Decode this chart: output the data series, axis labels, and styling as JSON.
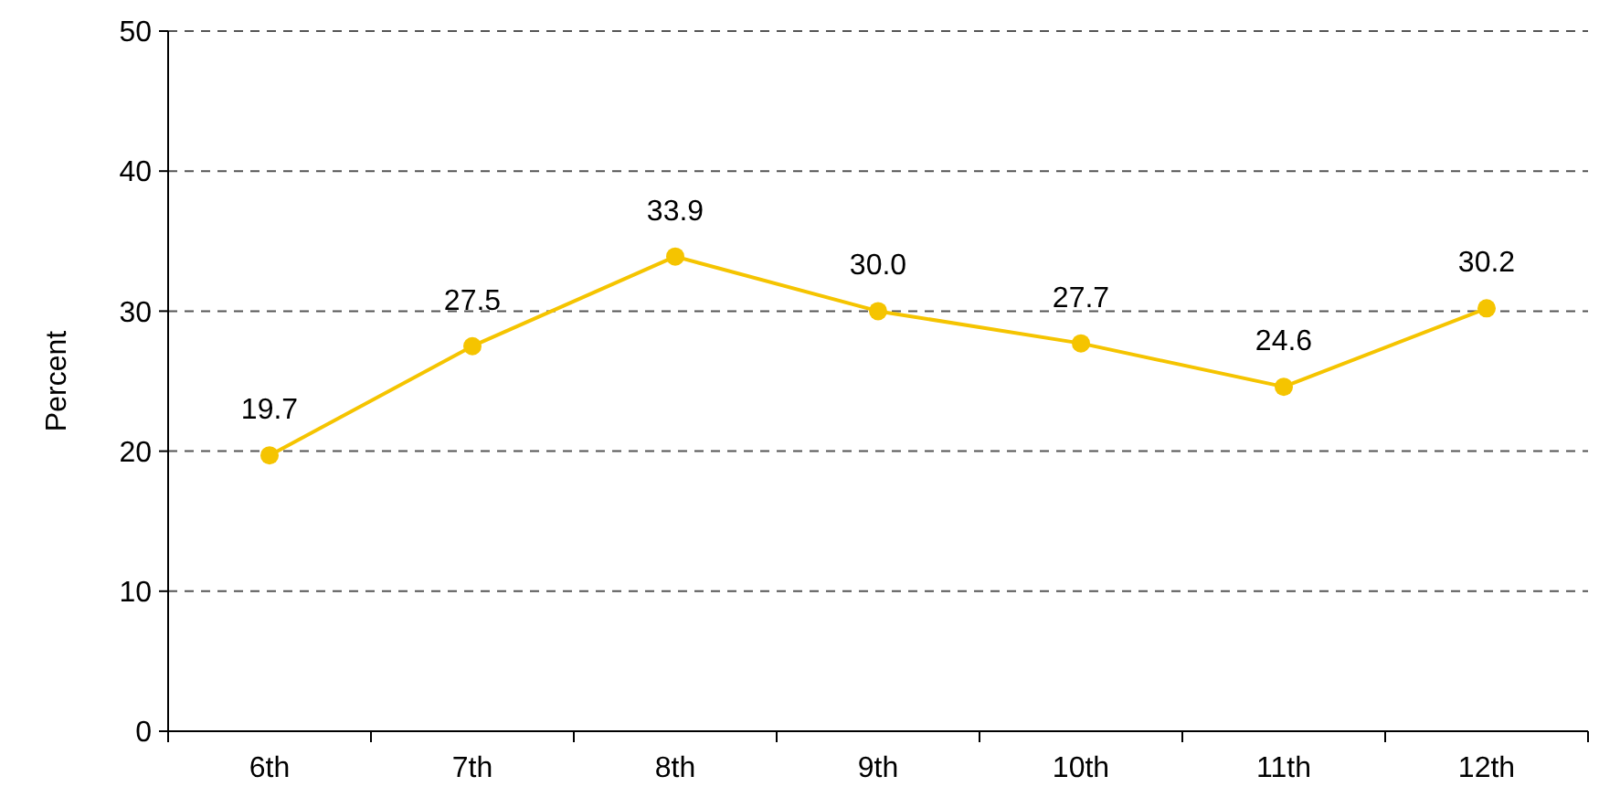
{
  "chart_data": {
    "type": "line",
    "ylabel": "Percent",
    "categories": [
      "6th",
      "7th",
      "8th",
      "9th",
      "10th",
      "11th",
      "12th"
    ],
    "series": [
      {
        "color": "#f5c400",
        "values": [
          19.7,
          27.5,
          33.9,
          30.0,
          27.7,
          24.6,
          30.2
        ],
        "value_labels": [
          "19.7",
          "27.5",
          "33.9",
          "30.0",
          "27.7",
          "24.6",
          "30.2"
        ]
      }
    ],
    "ylim": [
      0,
      50
    ],
    "yticks": [
      0,
      10,
      20,
      30,
      40,
      50
    ],
    "grid": "y",
    "marker": "circle",
    "line_style": "solid"
  }
}
